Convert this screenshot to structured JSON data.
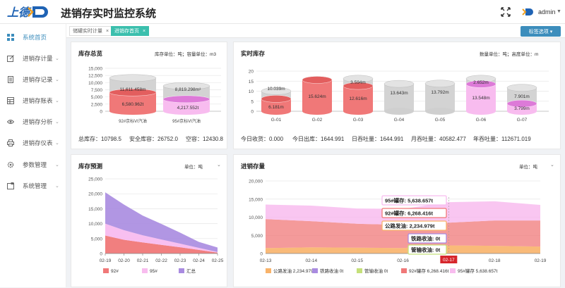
{
  "app": {
    "logo_text": "上德",
    "title": "进销存实时监控系统",
    "user": "admin"
  },
  "colors": {
    "accent": "#3c8dbc",
    "tab_active": "#3bbfad",
    "red": "#f07878",
    "pink": "#f8bcef",
    "purple": "#a98be0",
    "orange": "#f8b36a"
  },
  "sidebar": {
    "items": [
      {
        "label": "系统首页",
        "icon": "grid-icon"
      },
      {
        "label": "进销存计量",
        "icon": "edit-icon"
      },
      {
        "label": "进销存记录",
        "icon": "document-icon"
      },
      {
        "label": "进销存账表",
        "icon": "table-icon"
      },
      {
        "label": "进销存分析",
        "icon": "eye-icon"
      },
      {
        "label": "进销存仪表",
        "icon": "printer-icon"
      },
      {
        "label": "参数管理",
        "icon": "gear-icon"
      },
      {
        "label": "系统管理",
        "icon": "window-icon"
      }
    ]
  },
  "tabs": [
    {
      "label": "储罐实时计量"
    },
    {
      "label": "进销存首页"
    }
  ],
  "tab_action": "标签选项 ▾",
  "panels": {
    "inventory": {
      "title": "库存总览",
      "unit": "库存单位：吨；容量单位：m3"
    },
    "realtime": {
      "title": "实时库存",
      "unit": "数量单位：吨；高度单位：m"
    },
    "forecast": {
      "title": "库存预测",
      "unit": "单位：吨"
    },
    "flow": {
      "title": "进销存量",
      "unit": "单位：吨"
    }
  },
  "inventory_stats": [
    "总库存：10798.5",
    "安全库容：26752.0",
    "空容：12430.8"
  ],
  "realtime_stats": [
    "今日收货：0.000",
    "今日出库：1644.991",
    "日吞吐量：1644.991",
    "月吞吐量：40582.477",
    "年吞吐量：112671.019"
  ],
  "chart_data": [
    {
      "type": "bar",
      "title": "库存总览",
      "categories": [
        "92#京标VI汽油",
        "95#京标VI汽油"
      ],
      "series": [
        {
          "name": "库存",
          "values": [
            6580.962,
            4217.552
          ]
        },
        {
          "name": "容量",
          "values": [
            11611.458,
            8819.298
          ]
        }
      ],
      "data_labels": [
        "6,580.962t",
        "4,217.552t",
        "11,611.458m",
        "8,819.298m³"
      ],
      "yticks": [
        "0",
        "2,500",
        "5,000",
        "7,500",
        "10,000",
        "12,500",
        "15,000"
      ],
      "ylim": [
        0,
        15000
      ]
    },
    {
      "type": "bar",
      "title": "实时库存",
      "categories": [
        "G-01",
        "G-02",
        "G-03",
        "G-04",
        "G-05",
        "G-06",
        "G-07"
      ],
      "series": [
        {
          "name": "液位",
          "values": [
            6.181,
            15.624,
            12.616,
            0,
            0,
            13.548,
            3.799
          ]
        },
        {
          "name": "高度",
          "values": [
            10.039,
            15.624,
            3.594,
            13.643,
            13.792,
            2.652,
            7.901
          ]
        }
      ],
      "data_labels": [
        "10.039m",
        "15.624m",
        "3.594m",
        "13.643m",
        "13.792m",
        "2.652m",
        "7.901m",
        "6.181m",
        "12.616m",
        "13.548m",
        "3.799m"
      ],
      "yticks": [
        "0",
        "5",
        "10",
        "15",
        "20"
      ],
      "ylim": [
        0,
        20
      ]
    },
    {
      "type": "area",
      "title": "库存预测",
      "x": [
        "02-19",
        "02-20",
        "02-21",
        "02-22",
        "02-23",
        "02-24",
        "02-25"
      ],
      "series": [
        {
          "name": "92#",
          "values": [
            6000,
            4600,
            3700,
            2900,
            2100,
            1200,
            300
          ]
        },
        {
          "name": "95#",
          "values": [
            4000,
            3200,
            2400,
            1800,
            1200,
            700,
            200
          ]
        },
        {
          "name": "汇总",
          "values": [
            10500,
            8600,
            6600,
            5200,
            3700,
            2000,
            1500
          ]
        }
      ],
      "yticks": [
        "0",
        "5,000",
        "10,000",
        "15,000",
        "20,000",
        "25,000"
      ],
      "ylim": [
        0,
        25000
      ]
    },
    {
      "type": "area",
      "title": "进销存量",
      "x": [
        "02-13",
        "02-14",
        "02-15",
        "02-16",
        "02-17",
        "02-18",
        "02-19"
      ],
      "series": [
        {
          "name": "公路发油",
          "values": [
            1500,
            1700,
            1600,
            1500,
            2234.979,
            2100,
            1900
          ]
        },
        {
          "name": "铁路收油",
          "values": [
            0,
            0,
            0,
            0,
            0,
            0,
            0
          ]
        },
        {
          "name": "管输收油",
          "values": [
            0,
            0,
            0,
            0,
            0,
            0,
            0
          ]
        },
        {
          "name": "92#罐存",
          "values": [
            8000,
            7200,
            6600,
            6400,
            6268.416,
            7000,
            7200
          ]
        },
        {
          "name": "95#罐存",
          "values": [
            4000,
            4300,
            4200,
            4400,
            5638.657,
            5300,
            4300
          ]
        }
      ],
      "legend_labels": [
        "公路发油 2,234.979t",
        "铁路收油 0t",
        "管输收油 0t",
        "92#罐存 6,268.416t",
        "95#罐存 5,638.657t"
      ],
      "tooltips": [
        "95#罐存: 5,638.657t",
        "92#罐存: 6,268.416t",
        "公路发油: 2,234.979t",
        "铁路收油: 0t",
        "管输收油: 0t"
      ],
      "highlight": "02-17",
      "yticks": [
        "0",
        "5,000",
        "10,000",
        "15,000",
        "20,000"
      ],
      "ylim": [
        0,
        20000
      ]
    }
  ]
}
